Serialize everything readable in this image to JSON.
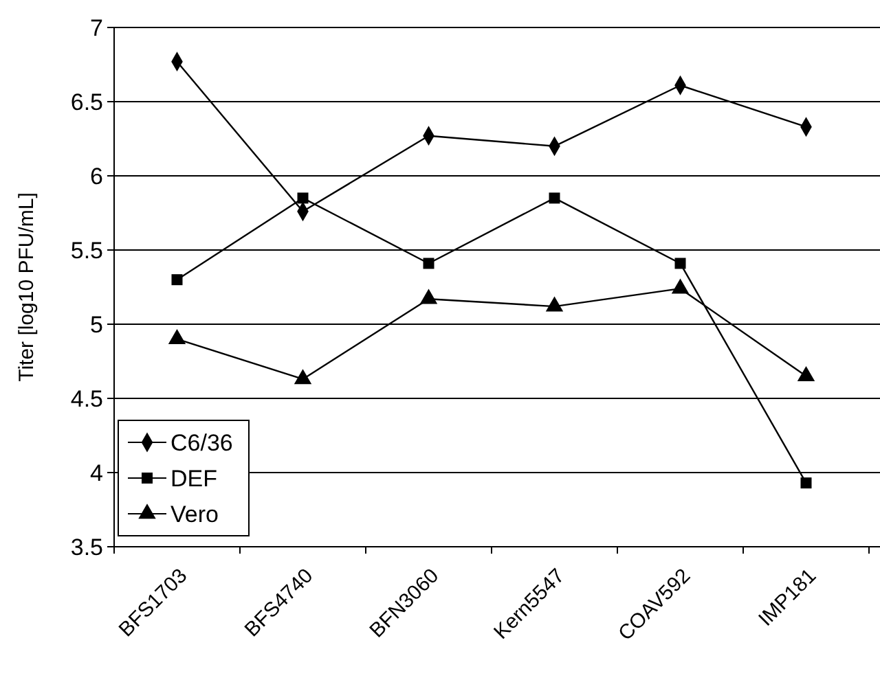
{
  "chart_data": {
    "type": "line",
    "ylabel": "Titer [log10 PFU/mL]",
    "categories": [
      "BFS1703",
      "BFS4740",
      "BFN3060",
      "Kern5547",
      "COAV592",
      "IMP181"
    ],
    "series": [
      {
        "name": "C6/36",
        "color": "#000000",
        "marker": "diamond",
        "values": [
          6.77,
          5.76,
          6.27,
          6.2,
          6.61,
          6.33
        ]
      },
      {
        "name": "DEF",
        "color": "#000000",
        "marker": "square",
        "values": [
          5.3,
          5.85,
          5.41,
          5.85,
          5.41,
          3.93
        ]
      },
      {
        "name": "Vero",
        "color": "#000000",
        "marker": "triangle",
        "values": [
          4.9,
          4.63,
          5.17,
          5.12,
          5.24,
          4.65
        ]
      }
    ],
    "ylim": [
      3.5,
      7
    ],
    "yticks": [
      3.5,
      4,
      4.5,
      5,
      5.5,
      6,
      6.5,
      7
    ],
    "grid": "y",
    "legend": "bottom left",
    "line_style": "solid"
  }
}
